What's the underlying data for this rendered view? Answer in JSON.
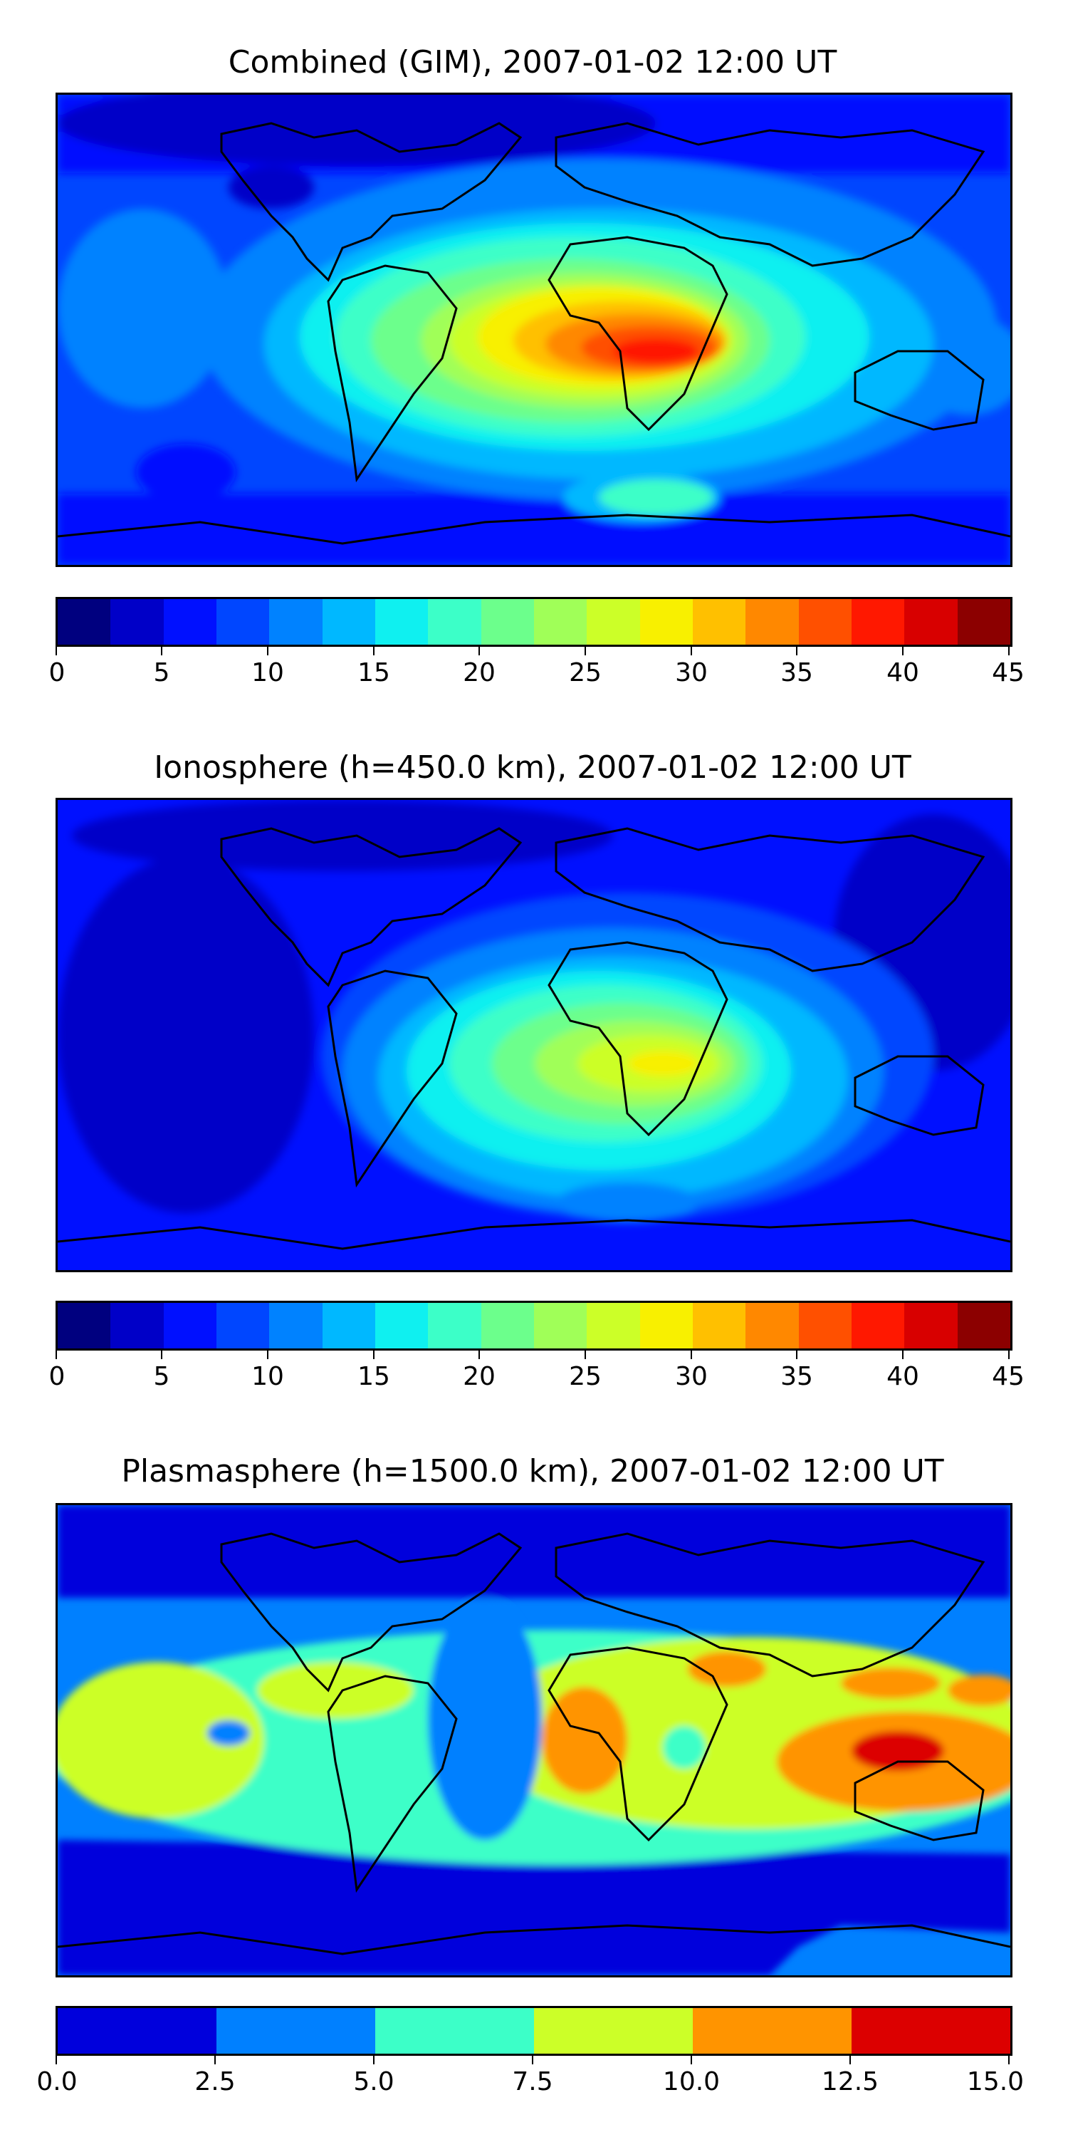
{
  "panels": [
    {
      "title": "Combined (GIM), 2007-01-02 12:00 UT",
      "colormap": [
        "#00007f",
        "#0000c8",
        "#0010ff",
        "#0046ff",
        "#0082ff",
        "#00b8ff",
        "#0ff0f0",
        "#3cffc8",
        "#6cff8c",
        "#a0ff58",
        "#ccff28",
        "#f8f000",
        "#ffc000",
        "#ff8800",
        "#ff5000",
        "#ff1800",
        "#d80000",
        "#8c0000"
      ],
      "ticks": [
        "0",
        "5",
        "10",
        "15",
        "20",
        "25",
        "30",
        "35",
        "40",
        "45"
      ],
      "range": [
        0,
        45
      ]
    },
    {
      "title": "Ionosphere  (h=450.0 km), 2007-01-02 12:00 UT",
      "colormap": [
        "#00007f",
        "#0000c8",
        "#0010ff",
        "#0046ff",
        "#0082ff",
        "#00b8ff",
        "#0ff0f0",
        "#3cffc8",
        "#6cff8c",
        "#a0ff58",
        "#ccff28",
        "#f8f000",
        "#ffc000",
        "#ff8800",
        "#ff5000",
        "#ff1800",
        "#d80000",
        "#8c0000"
      ],
      "ticks": [
        "0",
        "5",
        "10",
        "15",
        "20",
        "25",
        "30",
        "35",
        "40",
        "45"
      ],
      "range": [
        0,
        45
      ]
    },
    {
      "title": "Plasmasphere (h=1500.0 km), 2007-01-02 12:00 UT",
      "colormap": [
        "#0000dc",
        "#0080ff",
        "#3cffc8",
        "#ccff28",
        "#ff9400",
        "#dc0000"
      ],
      "ticks": [
        "0.0",
        "2.5",
        "5.0",
        "7.5",
        "10.0",
        "12.5",
        "15.0"
      ],
      "range": [
        0,
        15
      ]
    }
  ]
}
